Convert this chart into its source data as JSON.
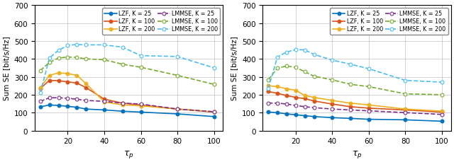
{
  "tau_p": [
    5,
    10,
    15,
    20,
    25,
    30,
    40,
    50,
    60,
    80,
    100
  ],
  "left": {
    "LZF_K25": [
      132,
      143,
      140,
      135,
      130,
      120,
      115,
      108,
      103,
      93,
      78
    ],
    "LZF_K100": [
      235,
      280,
      278,
      272,
      265,
      240,
      175,
      153,
      143,
      120,
      103
    ],
    "LZF_K200": [
      240,
      308,
      322,
      318,
      308,
      262,
      160,
      143,
      138,
      120,
      105
    ],
    "LMMSE_K25": [
      163,
      183,
      183,
      180,
      175,
      168,
      163,
      153,
      148,
      120,
      105
    ],
    "LMMSE_K100": [
      335,
      380,
      405,
      410,
      408,
      400,
      395,
      370,
      353,
      308,
      258
    ],
    "LMMSE_K200": [
      210,
      405,
      448,
      475,
      480,
      478,
      478,
      465,
      418,
      413,
      350
    ]
  },
  "right": {
    "LZF_K25": [
      103,
      100,
      93,
      88,
      83,
      78,
      72,
      68,
      63,
      60,
      52
    ],
    "LZF_K100": [
      218,
      208,
      195,
      185,
      178,
      165,
      148,
      133,
      125,
      115,
      103
    ],
    "LZF_K200": [
      250,
      245,
      233,
      225,
      195,
      185,
      168,
      153,
      143,
      120,
      108
    ],
    "LMMSE_K25": [
      153,
      153,
      148,
      140,
      133,
      128,
      120,
      115,
      110,
      100,
      90
    ],
    "LMMSE_K100": [
      283,
      348,
      360,
      353,
      328,
      303,
      283,
      258,
      245,
      205,
      200
    ],
    "LMMSE_K200": [
      235,
      410,
      438,
      452,
      450,
      425,
      393,
      370,
      345,
      280,
      270
    ]
  },
  "colors": {
    "LZF_K25": "#0072BD",
    "LZF_K100": "#D95319",
    "LZF_K200": "#EDB120",
    "LMMSE_K25": "#7E2F8E",
    "LMMSE_K100": "#77AC30",
    "LMMSE_K200": "#4DBEEE"
  },
  "legend_labels": {
    "LZF_K25": "LZF, K = 25",
    "LZF_K100": "LZF, K = 100",
    "LZF_K200": "LZF, K = 200",
    "LMMSE_K25": "LMMSE, K = 25",
    "LMMSE_K100": "LMMSE, K = 100",
    "LMMSE_K200": "LMMSE, K = 200"
  },
  "ylabel": "Sum SE [bit/s/Hz]",
  "xlabel": "$\\tau_p$",
  "ylim": [
    0,
    700
  ],
  "yticks": [
    0,
    100,
    200,
    300,
    400,
    500,
    600,
    700
  ],
  "xlim": [
    2,
    105
  ],
  "xticks": [
    20,
    40,
    60,
    80,
    100
  ],
  "figsize": [
    6.4,
    2.3
  ],
  "dpi": 100
}
